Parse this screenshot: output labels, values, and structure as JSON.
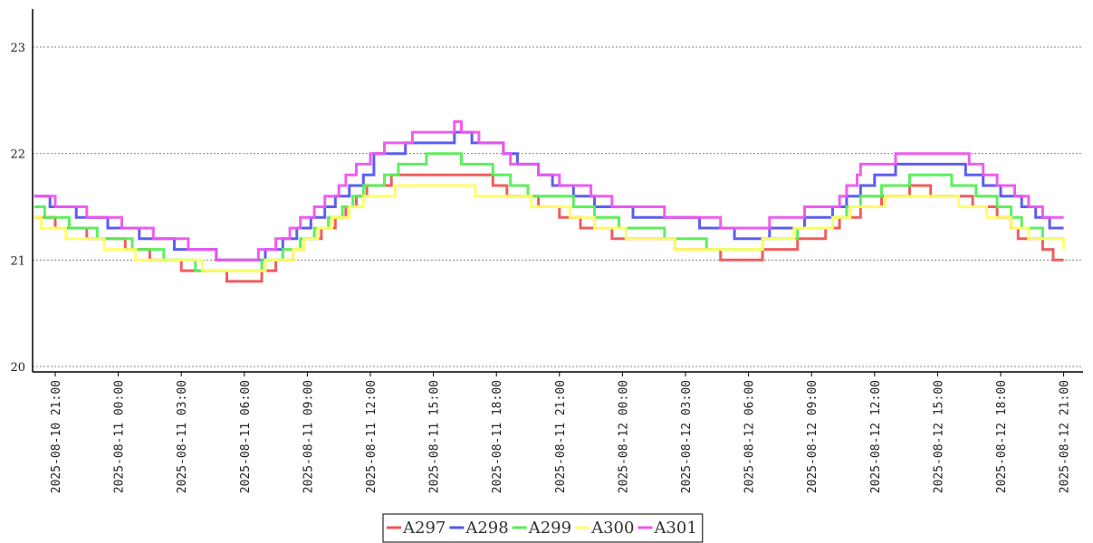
{
  "chart_data": {
    "type": "line",
    "title": "",
    "xlabel": "",
    "ylabel": "",
    "ylim": [
      20,
      23.4
    ],
    "yticks": [
      20,
      21,
      22,
      23
    ],
    "grid": {
      "horizontal": true,
      "style": "dotted"
    },
    "legend_position": "bottom-center",
    "x_start": "2025-08-10 20:00",
    "x_end": "2025-08-12 21:00",
    "xtick_labels": [
      "2025-08-10  21:00",
      "2025-08-11  00:00",
      "2025-08-11  03:00",
      "2025-08-11  06:00",
      "2025-08-11  09:00",
      "2025-08-11  12:00",
      "2025-08-11  15:00",
      "2025-08-11  18:00",
      "2025-08-11  21:00",
      "2025-08-12  00:00",
      "2025-08-12  03:00",
      "2025-08-12  06:00",
      "2025-08-12  09:00",
      "2025-08-12  12:00",
      "2025-08-12  15:00",
      "2025-08-12  18:00",
      "2025-08-12  21:00"
    ],
    "series": [
      {
        "name": "A297",
        "color": "#ee5555",
        "points": [
          [
            "2025-08-10 20:00",
            21.4
          ],
          [
            "2025-08-10 21:00",
            21.3
          ],
          [
            "2025-08-10 22:30",
            21.2
          ],
          [
            "2025-08-11 00:20",
            21.1
          ],
          [
            "2025-08-11 01:30",
            21.0
          ],
          [
            "2025-08-11 03:00",
            20.9
          ],
          [
            "2025-08-11 05:10",
            20.8
          ],
          [
            "2025-08-11 06:50",
            20.9
          ],
          [
            "2025-08-11 07:30",
            21.0
          ],
          [
            "2025-08-11 08:20",
            21.1
          ],
          [
            "2025-08-11 08:50",
            21.2
          ],
          [
            "2025-08-11 09:40",
            21.3
          ],
          [
            "2025-08-11 10:20",
            21.4
          ],
          [
            "2025-08-11 10:50",
            21.5
          ],
          [
            "2025-08-11 11:20",
            21.6
          ],
          [
            "2025-08-11 11:50",
            21.7
          ],
          [
            "2025-08-11 13:00",
            21.8
          ],
          [
            "2025-08-11 17:50",
            21.7
          ],
          [
            "2025-08-11 18:30",
            21.6
          ],
          [
            "2025-08-11 20:00",
            21.5
          ],
          [
            "2025-08-11 21:00",
            21.4
          ],
          [
            "2025-08-11 22:00",
            21.3
          ],
          [
            "2025-08-11 23:30",
            21.2
          ],
          [
            "2025-08-12 02:30",
            21.1
          ],
          [
            "2025-08-12 04:40",
            21.0
          ],
          [
            "2025-08-12 06:40",
            21.1
          ],
          [
            "2025-08-12 08:20",
            21.2
          ],
          [
            "2025-08-12 09:40",
            21.3
          ],
          [
            "2025-08-12 10:20",
            21.4
          ],
          [
            "2025-08-12 11:20",
            21.5
          ],
          [
            "2025-08-12 12:20",
            21.6
          ],
          [
            "2025-08-12 13:40",
            21.7
          ],
          [
            "2025-08-12 14:40",
            21.6
          ],
          [
            "2025-08-12 16:40",
            21.5
          ],
          [
            "2025-08-12 17:50",
            21.4
          ],
          [
            "2025-08-12 18:30",
            21.3
          ],
          [
            "2025-08-12 18:50",
            21.2
          ],
          [
            "2025-08-12 20:00",
            21.1
          ],
          [
            "2025-08-12 20:30",
            21.0
          ],
          [
            "2025-08-12 21:00",
            21.0
          ]
        ]
      },
      {
        "name": "A298",
        "color": "#5555ee",
        "points": [
          [
            "2025-08-10 20:00",
            21.6
          ],
          [
            "2025-08-10 20:45",
            21.5
          ],
          [
            "2025-08-10 22:00",
            21.4
          ],
          [
            "2025-08-10 23:30",
            21.3
          ],
          [
            "2025-08-11 01:00",
            21.2
          ],
          [
            "2025-08-11 02:40",
            21.1
          ],
          [
            "2025-08-11 04:40",
            21.0
          ],
          [
            "2025-08-11 07:00",
            21.1
          ],
          [
            "2025-08-11 07:50",
            21.2
          ],
          [
            "2025-08-11 08:30",
            21.3
          ],
          [
            "2025-08-11 09:10",
            21.4
          ],
          [
            "2025-08-11 09:50",
            21.5
          ],
          [
            "2025-08-11 10:20",
            21.6
          ],
          [
            "2025-08-11 11:00",
            21.7
          ],
          [
            "2025-08-11 11:40",
            21.8
          ],
          [
            "2025-08-11 12:10",
            22.0
          ],
          [
            "2025-08-11 13:40",
            22.1
          ],
          [
            "2025-08-11 16:00",
            22.2
          ],
          [
            "2025-08-11 16:50",
            22.1
          ],
          [
            "2025-08-11 18:20",
            22.0
          ],
          [
            "2025-08-11 19:00",
            21.9
          ],
          [
            "2025-08-11 20:00",
            21.8
          ],
          [
            "2025-08-11 20:40",
            21.7
          ],
          [
            "2025-08-11 21:40",
            21.6
          ],
          [
            "2025-08-11 22:40",
            21.5
          ],
          [
            "2025-08-12 00:30",
            21.4
          ],
          [
            "2025-08-12 03:40",
            21.3
          ],
          [
            "2025-08-12 05:20",
            21.2
          ],
          [
            "2025-08-12 07:00",
            21.3
          ],
          [
            "2025-08-12 08:40",
            21.4
          ],
          [
            "2025-08-12 10:00",
            21.5
          ],
          [
            "2025-08-12 10:40",
            21.6
          ],
          [
            "2025-08-12 11:20",
            21.7
          ],
          [
            "2025-08-12 12:00",
            21.8
          ],
          [
            "2025-08-12 13:00",
            21.9
          ],
          [
            "2025-08-12 16:20",
            21.8
          ],
          [
            "2025-08-12 17:10",
            21.7
          ],
          [
            "2025-08-12 18:00",
            21.6
          ],
          [
            "2025-08-12 19:00",
            21.5
          ],
          [
            "2025-08-12 19:40",
            21.4
          ],
          [
            "2025-08-12 20:20",
            21.3
          ],
          [
            "2025-08-12 21:00",
            21.3
          ]
        ]
      },
      {
        "name": "A299",
        "color": "#55ee55",
        "points": [
          [
            "2025-08-10 20:00",
            21.5
          ],
          [
            "2025-08-10 20:30",
            21.4
          ],
          [
            "2025-08-10 21:40",
            21.3
          ],
          [
            "2025-08-10 23:00",
            21.2
          ],
          [
            "2025-08-11 00:40",
            21.1
          ],
          [
            "2025-08-11 02:10",
            21.0
          ],
          [
            "2025-08-11 03:40",
            20.9
          ],
          [
            "2025-08-11 06:50",
            21.0
          ],
          [
            "2025-08-11 07:50",
            21.1
          ],
          [
            "2025-08-11 08:40",
            21.2
          ],
          [
            "2025-08-11 09:20",
            21.3
          ],
          [
            "2025-08-11 10:00",
            21.4
          ],
          [
            "2025-08-11 10:40",
            21.5
          ],
          [
            "2025-08-11 11:10",
            21.6
          ],
          [
            "2025-08-11 11:40",
            21.7
          ],
          [
            "2025-08-11 12:40",
            21.8
          ],
          [
            "2025-08-11 13:20",
            21.9
          ],
          [
            "2025-08-11 14:40",
            22.0
          ],
          [
            "2025-08-11 16:20",
            21.9
          ],
          [
            "2025-08-11 17:50",
            21.8
          ],
          [
            "2025-08-11 18:40",
            21.7
          ],
          [
            "2025-08-11 19:30",
            21.6
          ],
          [
            "2025-08-11 21:40",
            21.5
          ],
          [
            "2025-08-11 22:40",
            21.4
          ],
          [
            "2025-08-11 23:50",
            21.3
          ],
          [
            "2025-08-12 02:00",
            21.2
          ],
          [
            "2025-08-12 04:00",
            21.1
          ],
          [
            "2025-08-12 06:40",
            21.2
          ],
          [
            "2025-08-12 08:20",
            21.3
          ],
          [
            "2025-08-12 10:00",
            21.4
          ],
          [
            "2025-08-12 10:40",
            21.5
          ],
          [
            "2025-08-12 11:20",
            21.6
          ],
          [
            "2025-08-12 12:20",
            21.7
          ],
          [
            "2025-08-12 13:40",
            21.8
          ],
          [
            "2025-08-12 15:40",
            21.7
          ],
          [
            "2025-08-12 16:50",
            21.6
          ],
          [
            "2025-08-12 17:50",
            21.5
          ],
          [
            "2025-08-12 18:30",
            21.4
          ],
          [
            "2025-08-12 19:00",
            21.3
          ],
          [
            "2025-08-12 20:00",
            21.2
          ],
          [
            "2025-08-12 21:00",
            21.2
          ]
        ]
      },
      {
        "name": "A300",
        "color": "#ffff66",
        "points": [
          [
            "2025-08-10 20:00",
            21.4
          ],
          [
            "2025-08-10 20:20",
            21.3
          ],
          [
            "2025-08-10 21:30",
            21.2
          ],
          [
            "2025-08-10 23:20",
            21.1
          ],
          [
            "2025-08-11 00:50",
            21.0
          ],
          [
            "2025-08-11 04:00",
            20.9
          ],
          [
            "2025-08-11 07:00",
            21.0
          ],
          [
            "2025-08-11 08:20",
            21.1
          ],
          [
            "2025-08-11 08:50",
            21.2
          ],
          [
            "2025-08-11 09:30",
            21.3
          ],
          [
            "2025-08-11 10:10",
            21.4
          ],
          [
            "2025-08-11 11:00",
            21.5
          ],
          [
            "2025-08-11 11:40",
            21.6
          ],
          [
            "2025-08-11 13:10",
            21.7
          ],
          [
            "2025-08-11 17:00",
            21.6
          ],
          [
            "2025-08-11 19:40",
            21.5
          ],
          [
            "2025-08-11 21:30",
            21.4
          ],
          [
            "2025-08-11 22:40",
            21.3
          ],
          [
            "2025-08-12 00:10",
            21.2
          ],
          [
            "2025-08-12 02:30",
            21.1
          ],
          [
            "2025-08-12 06:40",
            21.2
          ],
          [
            "2025-08-12 08:10",
            21.3
          ],
          [
            "2025-08-12 10:00",
            21.4
          ],
          [
            "2025-08-12 10:50",
            21.5
          ],
          [
            "2025-08-12 12:30",
            21.6
          ],
          [
            "2025-08-12 16:00",
            21.5
          ],
          [
            "2025-08-12 17:20",
            21.4
          ],
          [
            "2025-08-12 18:30",
            21.3
          ],
          [
            "2025-08-12 19:20",
            21.2
          ],
          [
            "2025-08-12 21:00",
            21.1
          ]
        ]
      },
      {
        "name": "A301",
        "color": "#ee55ee",
        "points": [
          [
            "2025-08-10 20:00",
            21.6
          ],
          [
            "2025-08-10 21:00",
            21.5
          ],
          [
            "2025-08-10 22:30",
            21.4
          ],
          [
            "2025-08-11 00:10",
            21.3
          ],
          [
            "2025-08-11 01:40",
            21.2
          ],
          [
            "2025-08-11 03:20",
            21.1
          ],
          [
            "2025-08-11 04:40",
            21.0
          ],
          [
            "2025-08-11 06:40",
            21.1
          ],
          [
            "2025-08-11 07:30",
            21.2
          ],
          [
            "2025-08-11 08:10",
            21.3
          ],
          [
            "2025-08-11 08:40",
            21.4
          ],
          [
            "2025-08-11 09:20",
            21.5
          ],
          [
            "2025-08-11 09:50",
            21.6
          ],
          [
            "2025-08-11 10:30",
            21.7
          ],
          [
            "2025-08-11 10:50",
            21.8
          ],
          [
            "2025-08-11 11:20",
            21.9
          ],
          [
            "2025-08-11 12:00",
            22.0
          ],
          [
            "2025-08-11 12:40",
            22.1
          ],
          [
            "2025-08-11 14:00",
            22.2
          ],
          [
            "2025-08-11 16:00",
            22.3
          ],
          [
            "2025-08-11 16:20",
            22.2
          ],
          [
            "2025-08-11 17:10",
            22.1
          ],
          [
            "2025-08-11 18:20",
            22.0
          ],
          [
            "2025-08-11 18:40",
            21.9
          ],
          [
            "2025-08-11 20:00",
            21.8
          ],
          [
            "2025-08-11 21:00",
            21.7
          ],
          [
            "2025-08-11 22:30",
            21.6
          ],
          [
            "2025-08-11 23:30",
            21.5
          ],
          [
            "2025-08-12 02:00",
            21.4
          ],
          [
            "2025-08-12 04:40",
            21.3
          ],
          [
            "2025-08-12 07:00",
            21.4
          ],
          [
            "2025-08-12 08:40",
            21.5
          ],
          [
            "2025-08-12 10:20",
            21.6
          ],
          [
            "2025-08-12 10:40",
            21.7
          ],
          [
            "2025-08-12 11:10",
            21.8
          ],
          [
            "2025-08-12 11:20",
            21.9
          ],
          [
            "2025-08-12 13:00",
            22.0
          ],
          [
            "2025-08-12 16:30",
            21.9
          ],
          [
            "2025-08-12 17:10",
            21.8
          ],
          [
            "2025-08-12 17:50",
            21.7
          ],
          [
            "2025-08-12 18:40",
            21.6
          ],
          [
            "2025-08-12 19:20",
            21.5
          ],
          [
            "2025-08-12 20:00",
            21.4
          ],
          [
            "2025-08-12 21:00",
            21.4
          ]
        ]
      }
    ]
  }
}
